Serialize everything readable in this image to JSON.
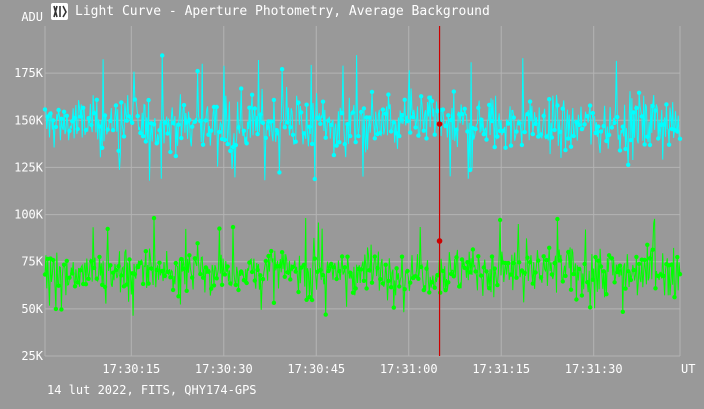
{
  "window": {
    "title": "Light Curve - Aperture Photometry, Average Background",
    "icon": "telescope-icon"
  },
  "footer": {
    "text": "14 lut 2022, FITS, QHY174-GPS"
  },
  "colors": {
    "background": "#999999",
    "grid": "#b4b4b4",
    "series_1": "#00ffff",
    "series_2": "#00ff00",
    "cursor": "#cc0000"
  },
  "chart_data": {
    "type": "scatter",
    "ylabel": "ADU",
    "xlabel": "UT",
    "ylim": [
      25000,
      200000
    ],
    "xlim": [
      "17:30:01",
      "17:31:44"
    ],
    "yticks": [
      {
        "value": 25000,
        "label": "25K"
      },
      {
        "value": 50000,
        "label": "50K"
      },
      {
        "value": 75000,
        "label": "75K"
      },
      {
        "value": 100000,
        "label": "100K"
      },
      {
        "value": 125000,
        "label": "125K"
      },
      {
        "value": 150000,
        "label": "150K"
      },
      {
        "value": 175000,
        "label": "175K"
      }
    ],
    "xticks": [
      {
        "value": "17:30:15",
        "label": "17:30:15"
      },
      {
        "value": "17:30:30",
        "label": "17:30:30"
      },
      {
        "value": "17:30:45",
        "label": "17:30:45"
      },
      {
        "value": "17:31:00",
        "label": "17:31:00"
      },
      {
        "value": "17:31:15",
        "label": "17:31:15"
      },
      {
        "value": "17:31:30",
        "label": "17:31:30"
      }
    ],
    "grid": true,
    "cursor": {
      "x": "17:31:05",
      "values": [
        148000,
        86000
      ]
    },
    "series": [
      {
        "mean": 148000,
        "spread": 12000,
        "min": 118000,
        "max": 185000,
        "points": 700
      },
      {
        "mean": 70000,
        "spread": 10000,
        "min": 46000,
        "max": 100000,
        "points": 700
      }
    ]
  }
}
